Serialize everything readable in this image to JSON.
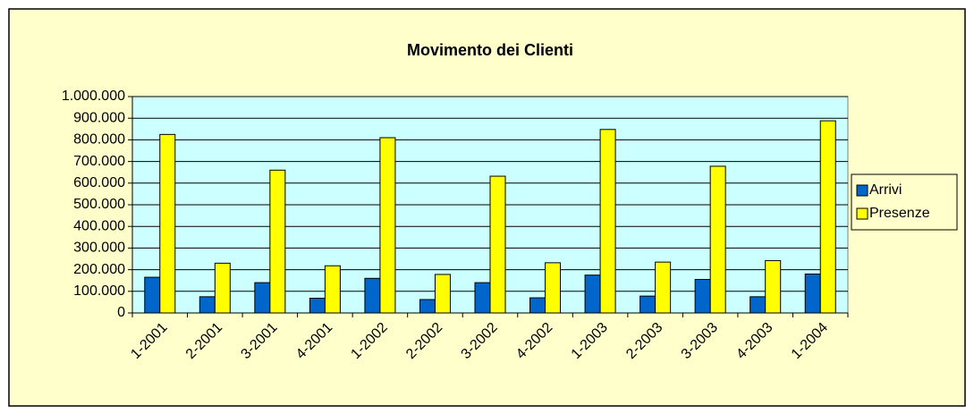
{
  "chart_data": {
    "type": "bar",
    "title": "Movimento dei Clienti",
    "categories": [
      "1-2001",
      "2-2001",
      "3-2001",
      "4-2001",
      "1-2002",
      "2-2002",
      "3-2002",
      "4-2002",
      "1-2003",
      "2-2003",
      "3-2003",
      "4-2003",
      "1-2004"
    ],
    "series": [
      {
        "name": "Arrivi",
        "color": "#0066cc",
        "values": [
          165000,
          75000,
          140000,
          68000,
          160000,
          62000,
          140000,
          70000,
          175000,
          78000,
          155000,
          75000,
          180000
        ]
      },
      {
        "name": "Presenze",
        "color": "#ffff00",
        "values": [
          825000,
          230000,
          660000,
          218000,
          810000,
          178000,
          632000,
          232000,
          848000,
          235000,
          678000,
          242000,
          888000
        ]
      }
    ],
    "ylim": [
      0,
      1000000
    ],
    "yticks": [
      0,
      {
        "value": 100000,
        "label": "100.000"
      },
      {
        "value": 200000,
        "label": "200.000"
      },
      {
        "value": 300000,
        "label": "300.000"
      },
      {
        "value": 400000,
        "label": "400.000"
      },
      {
        "value": 500000,
        "label": "500.000"
      },
      {
        "value": 600000,
        "label": "600.000"
      },
      {
        "value": 700000,
        "label": "700.000"
      },
      {
        "value": 800000,
        "label": "800.000"
      },
      {
        "value": 900000,
        "label": "900.000"
      },
      {
        "value": 1000000,
        "label": "1.000.000"
      }
    ],
    "grid": true,
    "legend": "right"
  }
}
